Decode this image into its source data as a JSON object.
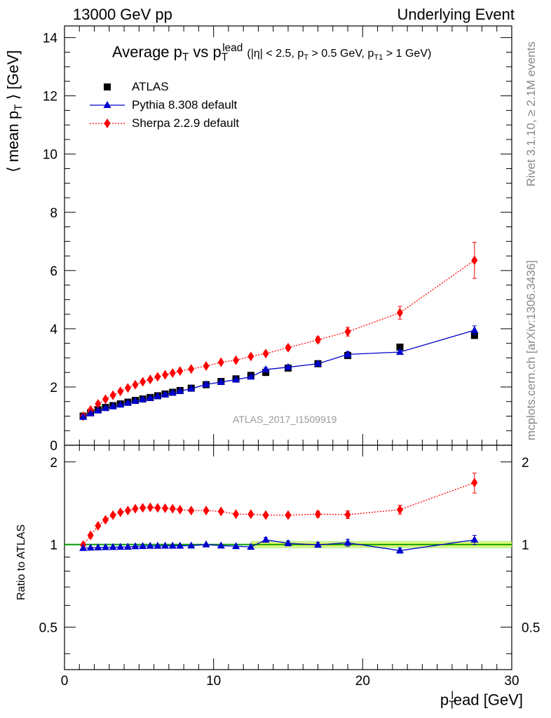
{
  "header": {
    "left": "13000 GeV pp",
    "right": "Underlying Event"
  },
  "side_labels": {
    "rivet": "Rivet 3.1.10, ≥ 2.1M events",
    "mcplots": "mcplots.cern.ch [arXiv:1306.3436]"
  },
  "watermark": "ATLAS_2017_I1509919",
  "colors": {
    "atlas": "#000000",
    "pythia": "#0000cc",
    "sherpa": "#ff0000",
    "band_inner": "#ffff66",
    "band_outer": "#aaee66",
    "ref_line": "#009900"
  },
  "chart_data": [
    {
      "type": "scatter",
      "title": "Average pT vs pTlead (|η| < 2.5, pT > 0.5 GeV, pT1 > 1 GeV)",
      "title_parts": {
        "a": "Average p",
        "a_sub": "T",
        "b": " vs p",
        "b_sub": "T",
        "b_sup": "lead",
        "c": "(|η| < 2.5, p",
        "c_sub": "T",
        "d": " > 0.5 GeV, p",
        "d_sub": "T1",
        "e": " > 1 GeV)"
      },
      "ylabel": "⟨ mean pT ⟩ [GeV]",
      "ylabel_parts": {
        "a": "⟨ mean p",
        "sub": "T",
        "b": " ⟩ [GeV]"
      },
      "xlim": [
        0,
        30
      ],
      "ylim": [
        0,
        14.4
      ],
      "yticks": [
        "0",
        "2",
        "4",
        "6",
        "8",
        "10",
        "12",
        "14"
      ],
      "legend_position": "top-left",
      "series": [
        {
          "name": "ATLAS",
          "marker": "square",
          "x": [
            1.25,
            1.75,
            2.25,
            2.75,
            3.25,
            3.75,
            4.25,
            4.75,
            5.25,
            5.75,
            6.25,
            6.75,
            7.25,
            7.75,
            8.5,
            9.5,
            10.5,
            11.5,
            12.5,
            13.5,
            15,
            17,
            19,
            22.5,
            27.5
          ],
          "y": [
            1.0,
            1.12,
            1.22,
            1.3,
            1.36,
            1.42,
            1.48,
            1.54,
            1.59,
            1.64,
            1.7,
            1.76,
            1.82,
            1.88,
            1.96,
            2.08,
            2.19,
            2.28,
            2.4,
            2.5,
            2.65,
            2.8,
            3.08,
            3.37,
            3.77
          ]
        },
        {
          "name": "Pythia 8.308 default",
          "marker": "triangle",
          "x": [
            1.25,
            1.75,
            2.25,
            2.75,
            3.25,
            3.75,
            4.25,
            4.75,
            5.25,
            5.75,
            6.25,
            6.75,
            7.25,
            7.75,
            8.5,
            9.5,
            10.5,
            11.5,
            12.5,
            13.5,
            15,
            17,
            19,
            22.5,
            27.5
          ],
          "y": [
            0.97,
            1.09,
            1.19,
            1.27,
            1.33,
            1.39,
            1.45,
            1.52,
            1.57,
            1.62,
            1.68,
            1.74,
            1.8,
            1.86,
            1.94,
            2.09,
            2.17,
            2.25,
            2.35,
            2.6,
            2.68,
            2.8,
            3.12,
            3.2,
            3.95
          ],
          "yerr": [
            0,
            0,
            0,
            0,
            0,
            0,
            0,
            0,
            0,
            0,
            0,
            0,
            0,
            0,
            0,
            0,
            0,
            0,
            0,
            0.06,
            0.06,
            0.06,
            0.1,
            0.08,
            0.15
          ]
        },
        {
          "name": "Sherpa 2.2.9 default",
          "marker": "diamond",
          "x": [
            1.25,
            1.75,
            2.25,
            2.75,
            3.25,
            3.75,
            4.25,
            4.75,
            5.25,
            5.75,
            6.25,
            6.75,
            7.25,
            7.75,
            8.5,
            9.5,
            10.5,
            11.5,
            12.5,
            13.5,
            15,
            17,
            19,
            22.5,
            27.5
          ],
          "y": [
            1.0,
            1.21,
            1.42,
            1.58,
            1.72,
            1.85,
            1.97,
            2.08,
            2.18,
            2.26,
            2.35,
            2.42,
            2.48,
            2.55,
            2.62,
            2.72,
            2.85,
            2.92,
            3.05,
            3.15,
            3.35,
            3.62,
            3.9,
            4.55,
            6.35
          ],
          "yerr": [
            0,
            0,
            0,
            0,
            0,
            0,
            0,
            0,
            0,
            0,
            0,
            0,
            0,
            0,
            0,
            0,
            0,
            0,
            0.05,
            0.06,
            0.08,
            0.1,
            0.15,
            0.22,
            0.62
          ]
        }
      ]
    },
    {
      "type": "scatter",
      "ylabel": "Ratio to ATLAS",
      "xlabel": "pTlead [GeV]",
      "xlabel_parts": {
        "a": "p",
        "sub": "T",
        "sup": "l",
        "b": "ead [GeV]"
      },
      "xlim": [
        0,
        30
      ],
      "ylim": [
        0.35,
        2.3
      ],
      "log_y": true,
      "xticks": [
        "0",
        "10",
        "20",
        "30"
      ],
      "yticks": [
        "0.5",
        "1",
        "2"
      ],
      "series": [
        {
          "name": "Pythia 8.308 default",
          "x": [
            1.25,
            1.75,
            2.25,
            2.75,
            3.25,
            3.75,
            4.25,
            4.75,
            5.25,
            5.75,
            6.25,
            6.75,
            7.25,
            7.75,
            8.5,
            9.5,
            10.5,
            11.5,
            12.5,
            13.5,
            15,
            17,
            19,
            22.5,
            27.5
          ],
          "y": [
            0.97,
            0.973,
            0.975,
            0.977,
            0.978,
            0.979,
            0.98,
            0.984,
            0.986,
            0.988,
            0.988,
            0.989,
            0.989,
            0.989,
            0.99,
            1.0,
            0.99,
            0.985,
            0.98,
            1.04,
            1.01,
            0.997,
            1.015,
            0.95,
            1.04
          ],
          "yerr": [
            0,
            0,
            0,
            0,
            0,
            0,
            0,
            0,
            0,
            0,
            0,
            0,
            0,
            0,
            0,
            0,
            0,
            0,
            0,
            0.02,
            0.02,
            0.02,
            0.03,
            0.02,
            0.04
          ]
        },
        {
          "name": "Sherpa 2.2.9 default",
          "x": [
            1.25,
            1.75,
            2.25,
            2.75,
            3.25,
            3.75,
            4.25,
            4.75,
            5.25,
            5.75,
            6.25,
            6.75,
            7.25,
            7.75,
            8.5,
            9.5,
            10.5,
            11.5,
            12.5,
            13.5,
            15,
            17,
            19,
            22.5,
            27.5
          ],
          "y": [
            0.995,
            1.08,
            1.17,
            1.23,
            1.28,
            1.31,
            1.33,
            1.35,
            1.36,
            1.365,
            1.36,
            1.355,
            1.35,
            1.34,
            1.33,
            1.33,
            1.32,
            1.29,
            1.29,
            1.28,
            1.28,
            1.29,
            1.285,
            1.34,
            1.68
          ],
          "yerr": [
            0,
            0,
            0,
            0,
            0,
            0,
            0,
            0,
            0,
            0,
            0,
            0,
            0,
            0,
            0,
            0,
            0,
            0,
            0.02,
            0.02,
            0.02,
            0.03,
            0.04,
            0.05,
            0.14
          ]
        }
      ],
      "ref_band": {
        "x": [
          0,
          30
        ],
        "y": 1.0,
        "inner": 0.015,
        "outer": 0.03
      }
    }
  ]
}
